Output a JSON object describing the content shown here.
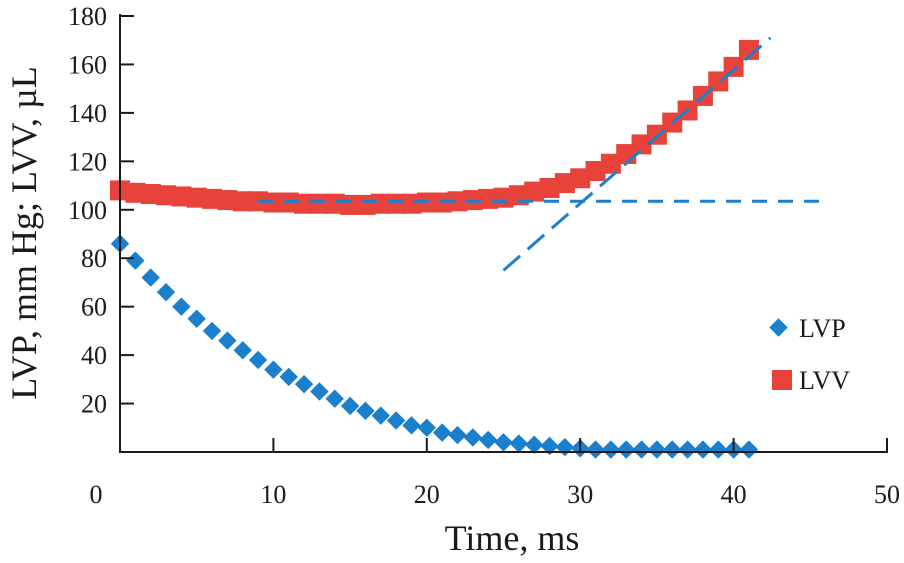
{
  "chart_data": {
    "type": "scatter",
    "title": "",
    "xlabel": "Time, ms",
    "ylabel": "LVP, mm Hg; LVV, µL",
    "xlim": [
      0,
      50
    ],
    "ylim": [
      0,
      180
    ],
    "x_ticks": [
      0,
      10,
      20,
      30,
      40,
      50
    ],
    "x_tick_labels": [
      "0",
      "10",
      "20",
      "30",
      "40",
      "50"
    ],
    "y_ticks": [
      20,
      40,
      60,
      80,
      100,
      120,
      140,
      160,
      180
    ],
    "y_tick_labels": [
      "20",
      "40",
      "60",
      "80",
      "100",
      "120",
      "140",
      "160",
      "180"
    ],
    "grid": false,
    "legend_position": "right",
    "x": [
      0,
      1,
      2,
      3,
      4,
      5,
      6,
      7,
      8,
      9,
      10,
      11,
      12,
      13,
      14,
      15,
      16,
      17,
      18,
      19,
      20,
      21,
      22,
      23,
      24,
      25,
      26,
      27,
      28,
      29,
      30,
      31,
      32,
      33,
      34,
      35,
      36,
      37,
      38,
      39,
      40,
      41
    ],
    "series": [
      {
        "name": "LVP",
        "marker": "diamond",
        "color": "#1a7fcc",
        "values": [
          86,
          79,
          72,
          66,
          60,
          55,
          50,
          46,
          42,
          38,
          34,
          31,
          28,
          25,
          22,
          19,
          17,
          15,
          13,
          11,
          10,
          8,
          7,
          6,
          5,
          4,
          3.5,
          3,
          2.5,
          2,
          1.5,
          1,
          1,
          1,
          1,
          1,
          1,
          1,
          1,
          1,
          1,
          1
        ]
      },
      {
        "name": "LVV",
        "marker": "square",
        "color": "#e8433a",
        "values": [
          108,
          107,
          106.5,
          106,
          105.5,
          105,
          104.5,
          104,
          103.5,
          103.5,
          103,
          103,
          102.5,
          102.5,
          102.5,
          102,
          102,
          102.5,
          102.5,
          102.5,
          103,
          103,
          103.5,
          104,
          104.5,
          105,
          106,
          107.5,
          109,
          111,
          113,
          116,
          119,
          123,
          127,
          131,
          136,
          141,
          147,
          153,
          159,
          166
        ]
      }
    ],
    "annotations": [
      {
        "type": "dashed-line",
        "name": "baseline-fit",
        "color": "#1a7fcc",
        "x": [
          9,
          46
        ],
        "y": [
          103.5,
          103.5
        ]
      },
      {
        "type": "dashed-line",
        "name": "rise-fit",
        "color": "#1a7fcc",
        "x": [
          25,
          42.4
        ],
        "y": [
          75,
          171
        ]
      }
    ]
  }
}
